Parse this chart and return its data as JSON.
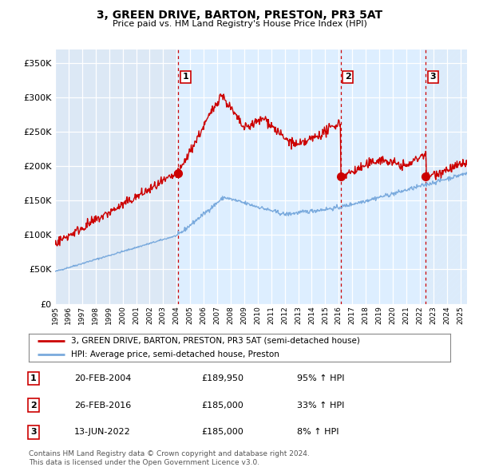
{
  "title": "3, GREEN DRIVE, BARTON, PRESTON, PR3 5AT",
  "subtitle": "Price paid vs. HM Land Registry's House Price Index (HPI)",
  "x_start": 1995.0,
  "x_end": 2025.5,
  "y_ticks": [
    0,
    50000,
    100000,
    150000,
    200000,
    250000,
    300000,
    350000
  ],
  "y_labels": [
    "£0",
    "£50K",
    "£100K",
    "£150K",
    "£200K",
    "£250K",
    "£300K",
    "£350K"
  ],
  "sale_dates": [
    2004.12,
    2016.15,
    2022.45
  ],
  "sale_prices": [
    189950,
    185000,
    185000
  ],
  "sale_labels": [
    "1",
    "2",
    "3"
  ],
  "vline_color": "#cc0000",
  "shade_color": "#ddeeff",
  "hatch_color": "#ccccdd",
  "hpi_line_color": "#7aaadd",
  "price_line_color": "#cc0000",
  "legend_line1": "3, GREEN DRIVE, BARTON, PRESTON, PR3 5AT (semi-detached house)",
  "legend_line2": "HPI: Average price, semi-detached house, Preston",
  "table_entries": [
    {
      "num": "1",
      "date": "20-FEB-2004",
      "price": "£189,950",
      "hpi": "95% ↑ HPI"
    },
    {
      "num": "2",
      "date": "26-FEB-2016",
      "price": "£185,000",
      "hpi": "33% ↑ HPI"
    },
    {
      "num": "3",
      "date": "13-JUN-2022",
      "price": "£185,000",
      "hpi": "8% ↑ HPI"
    }
  ],
  "footnote1": "Contains HM Land Registry data © Crown copyright and database right 2024.",
  "footnote2": "This data is licensed under the Open Government Licence v3.0.",
  "x_tick_years": [
    1995,
    1996,
    1997,
    1998,
    1999,
    2000,
    2001,
    2002,
    2003,
    2004,
    2005,
    2006,
    2007,
    2008,
    2009,
    2010,
    2011,
    2012,
    2013,
    2014,
    2015,
    2016,
    2017,
    2018,
    2019,
    2020,
    2021,
    2022,
    2023,
    2024,
    2025
  ]
}
